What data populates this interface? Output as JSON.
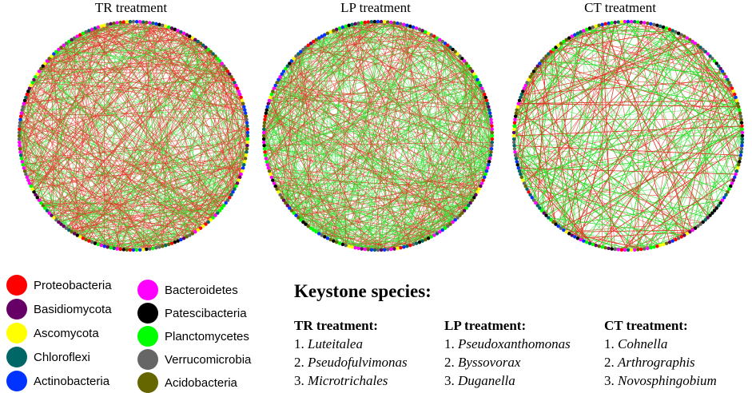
{
  "networks": [
    {
      "title": "TR treatment",
      "seed": 11,
      "red_ratio": 0.62
    },
    {
      "title": "LP treatment",
      "seed": 23,
      "red_ratio": 0.4
    },
    {
      "title": "CT treatment",
      "seed": 37,
      "red_ratio": 0.52
    }
  ],
  "edge_colors": {
    "positive": "#2ee02e",
    "negative": "#e23a2a"
  },
  "legend": [
    {
      "label": "Proteobacteria",
      "color": "#ff0000"
    },
    {
      "label": "Basidiomycota",
      "color": "#660066"
    },
    {
      "label": "Ascomycota",
      "color": "#ffff00"
    },
    {
      "label": "Chloroflexi",
      "color": "#006666"
    },
    {
      "label": "Actinobacteria",
      "color": "#0033ff"
    },
    {
      "label": "Bacteroidetes",
      "color": "#ff00ff"
    },
    {
      "label": "Patescibacteria",
      "color": "#000000"
    },
    {
      "label": "Planctomycetes",
      "color": "#00ff00"
    },
    {
      "label": "Verrucomicrobia",
      "color": "#666666"
    },
    {
      "label": "Acidobacteria",
      "color": "#666600"
    }
  ],
  "keystone": {
    "title": "Keystone species:",
    "columns": [
      {
        "heading": "TR treatment:",
        "items": [
          [
            "1. ",
            "Luteitalea"
          ],
          [
            "2. ",
            "Pseudofulvimonas"
          ],
          [
            "3. ",
            "Microtrichales"
          ]
        ]
      },
      {
        "heading": "LP treatment:",
        "items": [
          [
            "1. ",
            "Pseudoxanthomonas"
          ],
          [
            "2. ",
            "Byssovorax"
          ],
          [
            "3. ",
            "Duganella"
          ]
        ]
      },
      {
        "heading": "CT treatment:",
        "items": [
          [
            "1. ",
            "Cohnella"
          ],
          [
            "2. ",
            "Arthrographis"
          ],
          [
            "3. ",
            "Novosphingobium"
          ]
        ]
      }
    ]
  }
}
